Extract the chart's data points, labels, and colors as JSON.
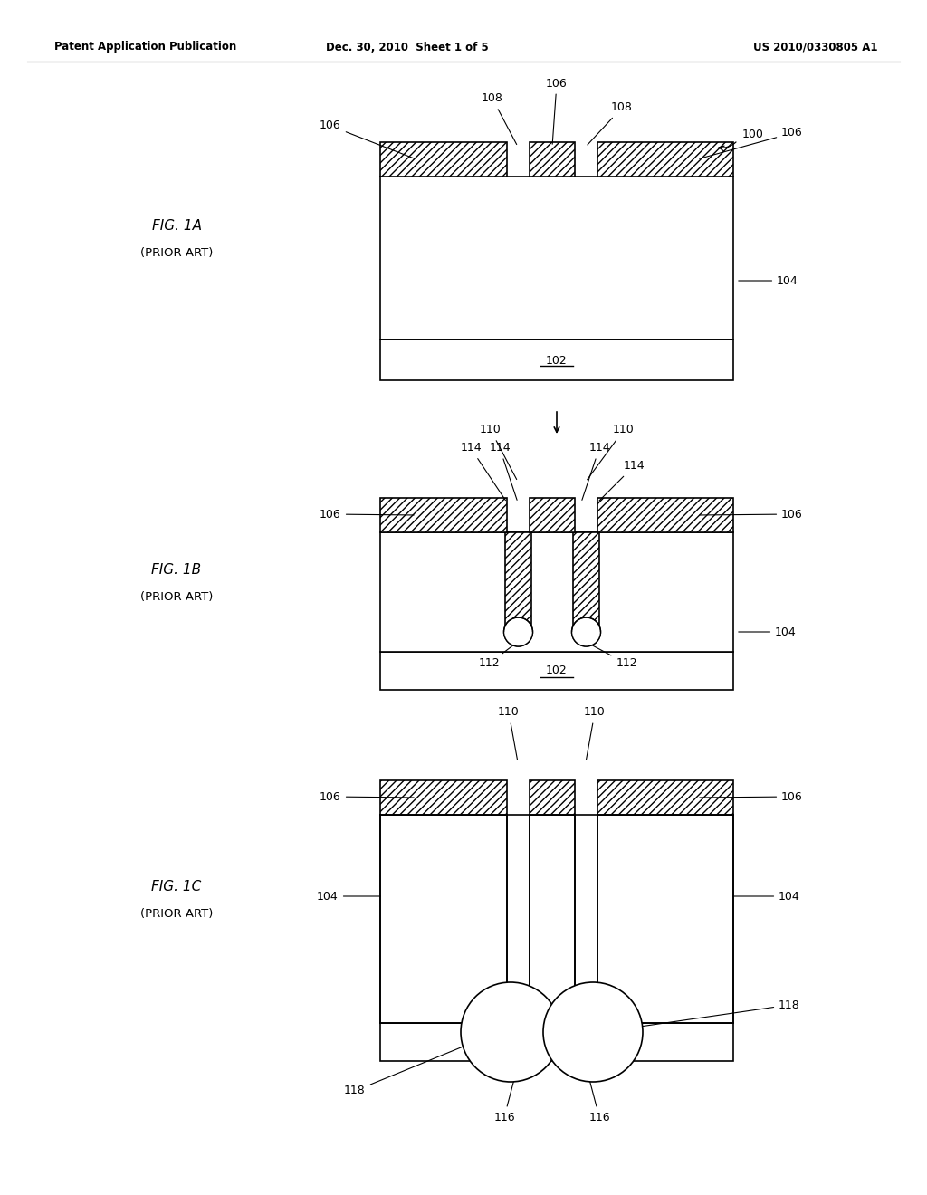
{
  "bg_color": "#ffffff",
  "header_left": "Patent Application Publication",
  "header_mid": "Dec. 30, 2010  Sheet 1 of 5",
  "header_right": "US 2010/0330805 A1",
  "line_color": "#000000",
  "hatch_pattern": "////"
}
